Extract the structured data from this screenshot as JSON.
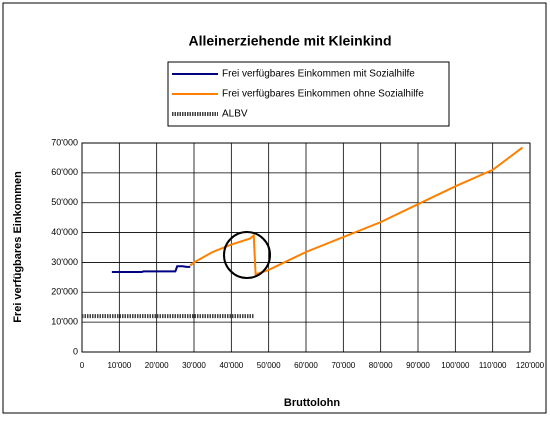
{
  "chart_data": {
    "type": "line",
    "title": "Alleinerziehende mit Kleinkind",
    "xlabel": "Bruttolohn",
    "ylabel": "Frei verfügbares Einkommen",
    "xlim": [
      0,
      120000
    ],
    "ylim": [
      0,
      70000
    ],
    "xticks": [
      0,
      {
        "value": 10000,
        "label": "10'000"
      },
      {
        "value": 20000,
        "label": "20'000"
      },
      {
        "value": 30000,
        "label": "30'000"
      },
      {
        "value": 40000,
        "label": "40'000"
      },
      {
        "value": 50000,
        "label": "50'000"
      },
      {
        "value": 60000,
        "label": "60'000"
      },
      {
        "value": 70000,
        "label": "70'000"
      },
      {
        "value": 80000,
        "label": "80'000"
      },
      {
        "value": 90000,
        "label": "90'000"
      },
      {
        "value": 100000,
        "label": "100'000"
      },
      {
        "value": 110000,
        "label": "110'000"
      },
      {
        "value": 120000,
        "label": "120'000"
      }
    ],
    "yticks": [
      0,
      {
        "value": 10000,
        "label": "10'000"
      },
      {
        "value": 20000,
        "label": "20'000"
      },
      {
        "value": 30000,
        "label": "30'000"
      },
      {
        "value": 40000,
        "label": "40'000"
      },
      {
        "value": 50000,
        "label": "50'000"
      },
      {
        "value": 60000,
        "label": "60'000"
      },
      {
        "value": 70000,
        "label": "70'000"
      }
    ],
    "grid": true,
    "series": [
      {
        "name": "Frei verfügbares Einkommen mit Sozialhilfe",
        "color": "#000080",
        "style": "solid",
        "x": [
          8000,
          16000,
          16500,
          25000,
          25500,
          27000,
          28000,
          29000
        ],
        "values": [
          26800,
          26800,
          27000,
          27000,
          28700,
          28700,
          28500,
          28500
        ]
      },
      {
        "name": "Frei verfügbares Einkommen ohne Sozialhilfe",
        "color": "#ff8000",
        "style": "solid",
        "x": [
          29000,
          30000,
          35000,
          40000,
          45000,
          46000,
          46500,
          50000,
          55000,
          60000,
          70000,
          80000,
          90000,
          100000,
          110000,
          118000
        ],
        "values": [
          29000,
          30000,
          33500,
          36000,
          38000,
          39000,
          26000,
          27500,
          30500,
          33500,
          38500,
          43500,
          49500,
          55500,
          61000,
          68500
        ]
      },
      {
        "name": "ALBV",
        "color": "#404040",
        "style": "dotted",
        "x": [
          0,
          46000
        ],
        "values": [
          12000,
          12000
        ]
      }
    ]
  }
}
